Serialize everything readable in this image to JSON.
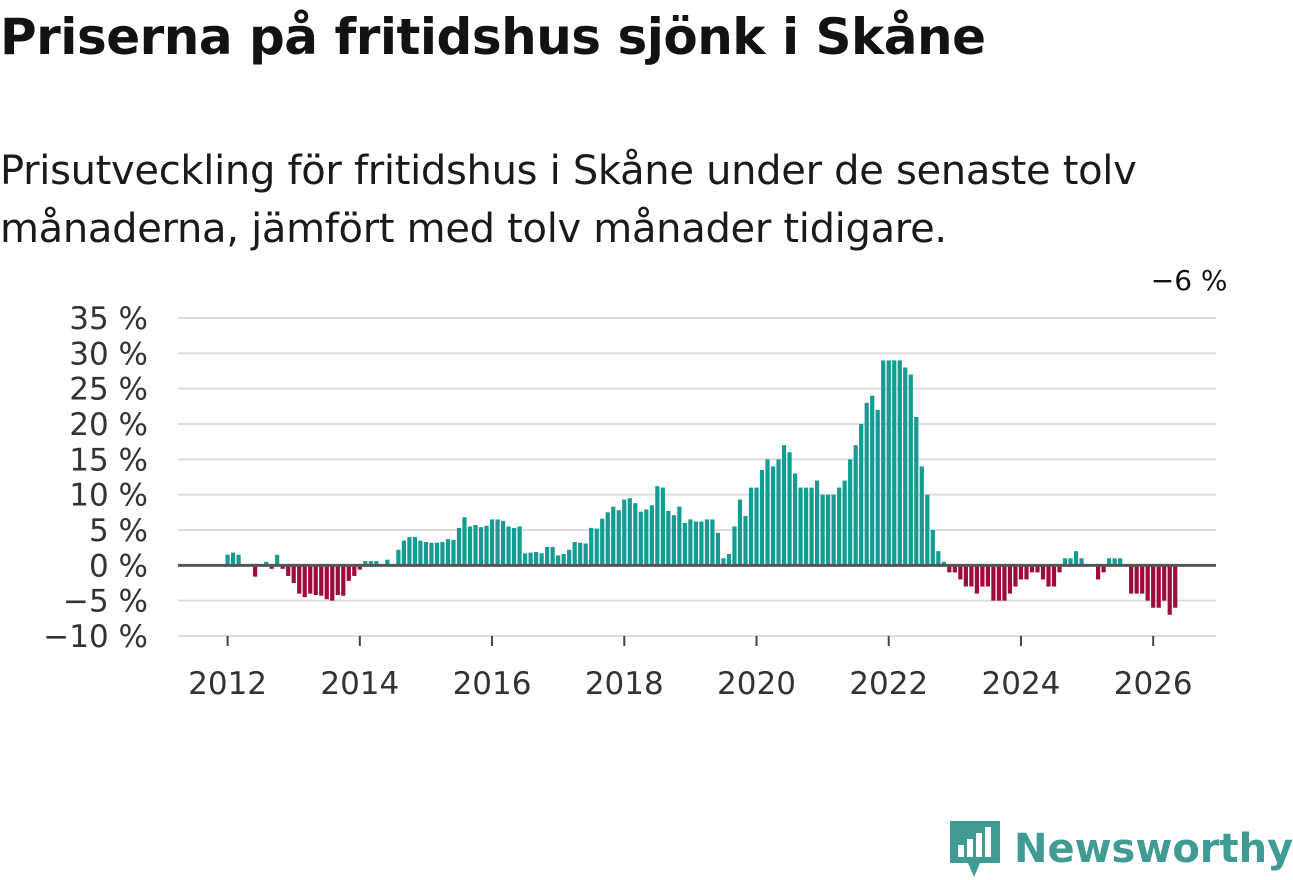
{
  "title": "Priserna på fritidshus sjönk i Skåne",
  "subtitle": "Prisutveckling för fritidshus i Skåne under de senaste tolv månaderna, jämfört med tolv månader tidigare.",
  "brand": {
    "name": "Newsworthy",
    "color": "#3f9b94"
  },
  "colors": {
    "positive": "#149c93",
    "negative": "#9e0c3c",
    "grid": "#dddddd",
    "zero_line": "#555555",
    "text": "#333333"
  },
  "chart_data": {
    "type": "bar",
    "title": "Priserna på fritidshus sjönk i Skåne",
    "xlabel": "",
    "ylabel": "",
    "start": "2012-01",
    "frequency": "monthly",
    "ylim": [
      -10,
      35
    ],
    "xlim": [
      2011.25,
      2026.95
    ],
    "y_ticks": [
      -10,
      -5,
      0,
      5,
      10,
      15,
      20,
      25,
      30,
      35
    ],
    "y_tick_labels": [
      "−10 %",
      "−5 %",
      "0 %",
      "5 %",
      "10 %",
      "15 %",
      "20 %",
      "25 %",
      "30 %",
      "35 %"
    ],
    "x_ticks": [
      2012,
      2014,
      2016,
      2018,
      2020,
      2022,
      2024,
      2026
    ],
    "x_tick_labels": [
      "2012",
      "2014",
      "2016",
      "2018",
      "2020",
      "2022",
      "2024",
      "2026"
    ],
    "annotation": {
      "label": "−6 %",
      "index": 173
    },
    "values": [
      1.5,
      1.8,
      1.5,
      0.0,
      0.0,
      -1.6,
      0.0,
      0.5,
      -0.5,
      1.5,
      -0.5,
      -1.5,
      -2.5,
      -4.0,
      -4.5,
      -4.0,
      -4.2,
      -4.3,
      -4.8,
      -5.0,
      -4.2,
      -4.3,
      -2.2,
      -1.5,
      -0.6,
      0.6,
      0.6,
      0.6,
      0.0,
      0.8,
      0.0,
      2.2,
      3.5,
      4.0,
      4.0,
      3.5,
      3.3,
      3.2,
      3.2,
      3.3,
      3.7,
      3.6,
      5.3,
      6.8,
      5.5,
      5.7,
      5.4,
      5.6,
      6.5,
      6.5,
      6.3,
      5.5,
      5.3,
      5.5,
      1.7,
      1.8,
      1.9,
      1.7,
      2.6,
      2.6,
      1.4,
      1.6,
      2.2,
      3.3,
      3.2,
      3.1,
      5.3,
      5.2,
      6.6,
      7.5,
      8.3,
      7.8,
      9.3,
      9.5,
      8.8,
      7.6,
      7.9,
      8.5,
      11.2,
      11.0,
      7.7,
      7.1,
      8.3,
      6.0,
      6.5,
      6.2,
      6.2,
      6.5,
      6.5,
      4.6,
      1.0,
      1.6,
      5.5,
      9.3,
      7.0,
      11.0,
      11.0,
      13.5,
      15.0,
      14.0,
      15.0,
      17.0,
      16.0,
      13.0,
      11.0,
      11.0,
      11.0,
      12.0,
      10.0,
      10.0,
      10.0,
      11.0,
      12.0,
      15.0,
      17.0,
      20.0,
      23.0,
      24.0,
      22.0,
      29.0,
      29.0,
      29.0,
      29.0,
      28.0,
      27.0,
      21.0,
      14.0,
      10.0,
      5.0,
      2.0,
      0.5,
      -1.0,
      -1.0,
      -2.0,
      -3.0,
      -3.0,
      -4.0,
      -3.0,
      -3.0,
      -5.0,
      -5.0,
      -5.0,
      -4.0,
      -3.0,
      -2.0,
      -2.0,
      -1.0,
      -1.0,
      -2.0,
      -3.0,
      -3.0,
      -1.0,
      1.0,
      1.0,
      2.0,
      1.0,
      0.0,
      0.0,
      -2.0,
      -1.0,
      1.0,
      1.0,
      1.0,
      0.0,
      -4.0,
      -4.0,
      -4.0,
      -5.0,
      -6.0,
      -6.0,
      -5.0,
      -7.0,
      -6.0
    ]
  }
}
